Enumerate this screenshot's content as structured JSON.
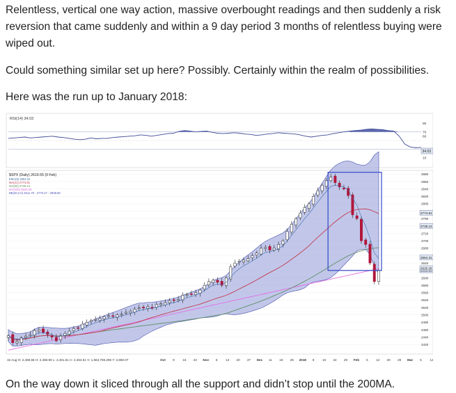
{
  "article": {
    "paragraph1": "Relentless, vertical one way action, massive overbought readings and then suddenly a risk reversion that came suddenly and within a 9 day period 3 months of relentless buying were wiped out.",
    "paragraph2": "Could something similar set up here? Possibly. Certainly within the realm of possibilities.",
    "paragraph3": "Here was the run up to January 2018:",
    "paragraph4": "On the way down it sliced through all the support and didn’t stop until the 200MA."
  },
  "chart_data": {
    "type": "candlestick",
    "rsi_panel": {
      "label": "RSI(14) 34.03",
      "ylim": [
        0,
        100
      ],
      "ticks": [
        10,
        60,
        70,
        90
      ],
      "highlight_value": "34.03",
      "values": [
        55,
        56,
        57,
        58,
        56,
        57,
        58,
        59,
        60,
        58,
        57,
        55,
        53,
        52,
        53,
        56,
        54,
        55,
        55,
        57,
        58,
        59,
        60,
        61,
        63,
        62,
        60,
        62,
        64,
        66,
        67,
        71,
        73,
        72,
        70,
        71,
        72,
        69,
        67,
        66,
        67,
        68,
        67,
        65,
        64,
        62,
        63,
        65,
        66,
        68,
        67,
        66,
        65,
        63,
        60,
        58,
        60,
        62,
        63,
        66,
        68,
        70,
        72,
        73,
        74,
        76,
        77,
        76,
        75,
        73,
        72,
        60,
        42,
        35,
        33,
        34
      ]
    },
    "price_panel": {
      "legend": [
        "$SPX (Daily) 2619.55 (9 Feb)",
        "EMA(5) 2654.31",
        "MA(21) 2774.91",
        "MA(50) 2739.13",
        "MA(200) 2625.26",
        "BB(20,2.0) 2611.75 - 2775.27 - 2938.80"
      ],
      "ylim": [
        2400,
        2890
      ],
      "yticks": [
        2420,
        2440,
        2460,
        2480,
        2500,
        2520,
        2540,
        2560,
        2580,
        2600,
        2620,
        2640,
        2660,
        2680,
        2700,
        2720,
        2740,
        2760,
        2780,
        2800,
        2820,
        2840,
        2860,
        2880
      ],
      "flagged_levels": [
        "2774.91",
        "2739.13",
        "2654.31",
        "2619.55",
        "2625.26"
      ],
      "close": [
        2444,
        2425,
        2428,
        2438,
        2443,
        2447,
        2458,
        2460,
        2453,
        2447,
        2440,
        2430,
        2444,
        2450,
        2456,
        2463,
        2465,
        2475,
        2480,
        2485,
        2488,
        2490,
        2495,
        2498,
        2496,
        2500,
        2502,
        2507,
        2510,
        2515,
        2519,
        2520,
        2522,
        2518,
        2528,
        2530,
        2533,
        2538,
        2540,
        2542,
        2553,
        2555,
        2557,
        2560,
        2567,
        2580,
        2590,
        2594,
        2588,
        2580,
        2600,
        2630,
        2640,
        2645,
        2648,
        2652,
        2660,
        2667,
        2680,
        2682,
        2675,
        2680,
        2690,
        2700,
        2725,
        2745,
        2760,
        2775,
        2790,
        2800,
        2820,
        2835,
        2850,
        2862,
        2872,
        2857,
        2845,
        2840,
        2822,
        2770,
        2760,
        2700,
        2690,
        2640,
        2590,
        2620
      ],
      "x_axis_labels": [
        "Oct",
        "9",
        "16",
        "23",
        "Nov",
        "6",
        "13",
        "20",
        "27",
        "Dec",
        "11",
        "18",
        "26",
        "2018",
        "8",
        "16",
        "22",
        "29",
        "Feb",
        "5",
        "12",
        "20",
        "26",
        "Mar",
        "5",
        "12"
      ],
      "footer_readout": "15 Aug  O: 2,468.66  H: 2,468.90  L: 2,461.61  C: 2,464.61  V: 1,684,759,296  Y: 2,860.07"
    }
  }
}
